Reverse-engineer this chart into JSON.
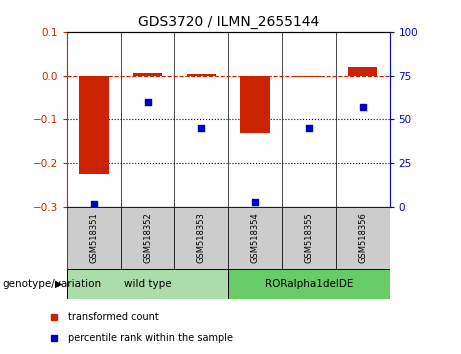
{
  "title": "GDS3720 / ILMN_2655144",
  "samples": [
    "GSM518351",
    "GSM518352",
    "GSM518353",
    "GSM518354",
    "GSM518355",
    "GSM518356"
  ],
  "bar_values": [
    -0.225,
    0.005,
    0.003,
    -0.13,
    -0.003,
    0.02
  ],
  "scatter_values": [
    2.0,
    60.0,
    45.0,
    3.0,
    45.0,
    57.0
  ],
  "bar_color": "#cc2200",
  "scatter_color": "#0000cc",
  "ylim_left": [
    -0.3,
    0.1
  ],
  "ylim_right": [
    0,
    100
  ],
  "yticks_left": [
    0.1,
    0.0,
    -0.1,
    -0.2,
    -0.3
  ],
  "yticks_right": [
    100,
    75,
    50,
    25,
    0
  ],
  "dotted_lines": [
    -0.1,
    -0.2
  ],
  "groups": [
    {
      "label": "wild type",
      "samples": [
        0,
        1,
        2
      ],
      "color": "#aaddaa"
    },
    {
      "label": "RORalpha1delDE",
      "samples": [
        3,
        4,
        5
      ],
      "color": "#66cc66"
    }
  ],
  "group_row_label": "genotype/variation",
  "legend_items": [
    {
      "label": "transformed count",
      "color": "#cc2200"
    },
    {
      "label": "percentile rank within the sample",
      "color": "#0000cc"
    }
  ],
  "bar_width": 0.55,
  "figsize": [
    4.61,
    3.54
  ],
  "dpi": 100,
  "background_label": "#cccccc",
  "title_fontsize": 10
}
